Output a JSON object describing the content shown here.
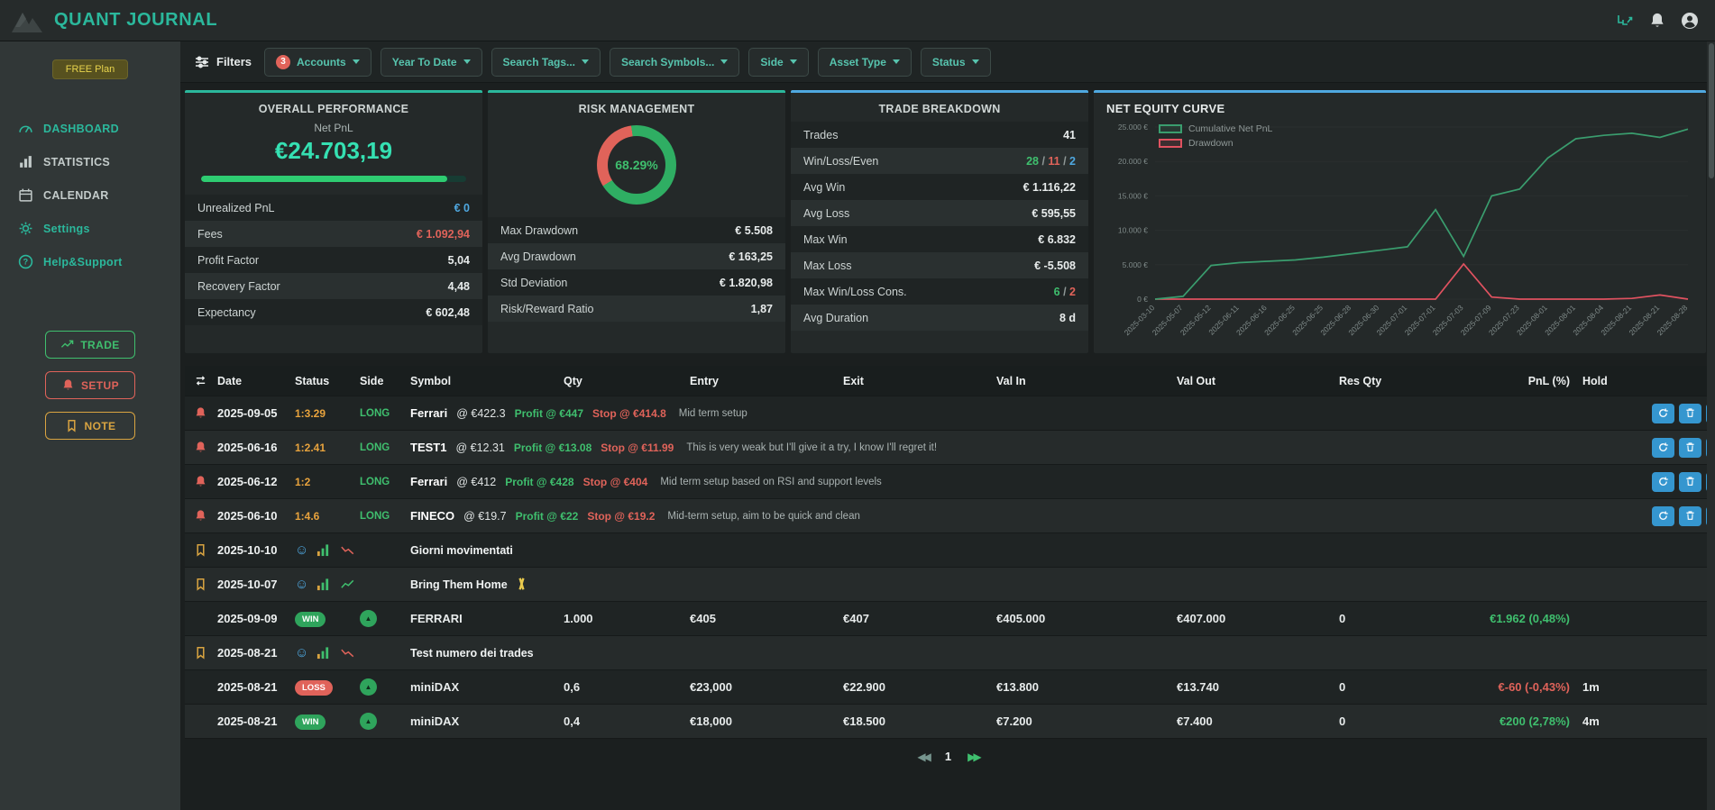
{
  "header": {
    "title": "QUANT JOURNAL"
  },
  "sidebar": {
    "plan_badge": "FREE Plan",
    "items": [
      {
        "label": "DASHBOARD",
        "icon": "gauge-icon",
        "accent": true
      },
      {
        "label": "STATISTICS",
        "icon": "stats-icon",
        "accent": false
      },
      {
        "label": "CALENDAR",
        "icon": "calendar-icon",
        "accent": false
      },
      {
        "label": "Settings",
        "icon": "gear-icon",
        "accent": true
      },
      {
        "label": "Help&Support",
        "icon": "help-icon",
        "accent": true
      }
    ],
    "actions": [
      {
        "label": "TRADE",
        "icon": "trade-icon",
        "color": "#3fbf6e"
      },
      {
        "label": "SETUP",
        "icon": "bell-icon",
        "color": "#e0635a"
      },
      {
        "label": "NOTE",
        "icon": "bookmark-icon",
        "color": "#d9a441"
      }
    ]
  },
  "filterbar": {
    "filters_label": "Filters",
    "accounts_badge": "3",
    "buttons": [
      "Accounts",
      "Year To Date",
      "Search Tags...",
      "Search Symbols...",
      "Side",
      "Asset Type",
      "Status"
    ]
  },
  "overall": {
    "title": "OVERALL PERFORMANCE",
    "net_pnl_label": "Net PnL",
    "net_pnl_value": "€24.703,19",
    "progress_pct": 93,
    "rows": [
      {
        "label": "Unrealized PnL",
        "value": "€ 0",
        "color": "blue"
      },
      {
        "label": "Fees",
        "value": "€ 1.092,94",
        "color": "red"
      },
      {
        "label": "Profit Factor",
        "value": "5,04"
      },
      {
        "label": "Recovery Factor",
        "value": "4,48"
      },
      {
        "label": "Expectancy",
        "value": "€ 602,48"
      }
    ]
  },
  "risk": {
    "title": "RISK MANAGEMENT",
    "donut_pct": "68.29%",
    "donut_value": 68.29,
    "rows": [
      {
        "label": "Max Drawdown",
        "value": "€ 5.508"
      },
      {
        "label": "Avg Drawdown",
        "value": "€ 163,25"
      },
      {
        "label": "Std Deviation",
        "value": "€ 1.820,98"
      },
      {
        "label": "Risk/Reward Ratio",
        "value": "1,87"
      }
    ]
  },
  "breakdown": {
    "title": "TRADE BREAKDOWN",
    "rows": [
      {
        "label": "Trades",
        "value": "41"
      },
      {
        "label": "Win/Loss/Even",
        "parts": [
          {
            "text": "28",
            "color": "green"
          },
          {
            "text": "11",
            "color": "red"
          },
          {
            "text": "2",
            "color": "blue"
          }
        ]
      },
      {
        "label": "Avg Win",
        "value": "€ 1.116,22"
      },
      {
        "label": "Avg Loss",
        "value": "€ 595,55"
      },
      {
        "label": "Max Win",
        "value": "€ 6.832"
      },
      {
        "label": "Max Loss",
        "value": "€ -5.508"
      },
      {
        "label": "Max Win/Loss Cons.",
        "parts": [
          {
            "text": "6",
            "color": "green"
          },
          {
            "text": "2",
            "color": "red"
          }
        ]
      },
      {
        "label": "Avg Duration",
        "value": "8 d"
      }
    ]
  },
  "equity": {
    "title": "NET EQUITY CURVE"
  },
  "chart_data": {
    "type": "line",
    "title": "NET EQUITY CURVE",
    "x": [
      "2025-03-10",
      "2025-05-07",
      "2025-05-12",
      "2025-06-11",
      "2025-06-16",
      "2025-06-25",
      "2025-06-25",
      "2025-06-28",
      "2025-06-30",
      "2025-07-01",
      "2025-07-01",
      "2025-07-03",
      "2025-07-09",
      "2025-07-23",
      "2025-08-01",
      "2025-08-01",
      "2025-08-04",
      "2025-08-21",
      "2025-08-21",
      "2025-08-28"
    ],
    "series": [
      {
        "name": "Cumulative Net PnL",
        "color": "#3a9d6e",
        "values": [
          0,
          400,
          4900,
          5300,
          5500,
          5700,
          6100,
          6600,
          7100,
          7600,
          13000,
          6200,
          15000,
          16000,
          20500,
          23300,
          23800,
          24100,
          23500,
          24703
        ]
      },
      {
        "name": "Drawdown",
        "color": "#e05260",
        "values": [
          0,
          0,
          0,
          0,
          0,
          0,
          0,
          0,
          0,
          0,
          0,
          5100,
          300,
          0,
          0,
          0,
          0,
          100,
          600,
          0
        ]
      }
    ],
    "ylim": [
      0,
      25000
    ],
    "yticks": [
      "0 €",
      "5.000 €",
      "10.000 €",
      "15.000 €",
      "20.000 €",
      "25.000 €"
    ],
    "legend_position": "top-left",
    "grid": false
  },
  "table": {
    "columns": [
      "Date",
      "Status",
      "Side",
      "Symbol",
      "Qty",
      "Entry",
      "Exit",
      "Val In",
      "Val Out",
      "Res Qty",
      "PnL (%)",
      "Hold"
    ],
    "rows": [
      {
        "type": "setup",
        "date": "2025-09-05",
        "ratio": "1:3.29",
        "side": "LONG",
        "symbol": "Ferrari",
        "price": "@ €422.3",
        "profit": "Profit @ €447",
        "stop": "Stop @ €414.8",
        "note": "Mid term setup"
      },
      {
        "type": "setup",
        "date": "2025-06-16",
        "ratio": "1:2.41",
        "side": "LONG",
        "symbol": "TEST1",
        "price": "@ €12.31",
        "profit": "Profit @ €13.08",
        "stop": "Stop @ €11.99",
        "note": "This is very weak but I'll give it a try, I know I'll regret it!"
      },
      {
        "type": "setup",
        "date": "2025-06-12",
        "ratio": "1:2",
        "side": "LONG",
        "symbol": "Ferrari",
        "price": "@ €412",
        "profit": "Profit @ €428",
        "stop": "Stop @ €404",
        "note": "Mid term setup based on RSI and support levels"
      },
      {
        "type": "setup",
        "date": "2025-06-10",
        "ratio": "1:4.6",
        "side": "LONG",
        "symbol": "FINECO",
        "price": "@ €19.7",
        "profit": "Profit @ €22",
        "stop": "Stop @ €19.2",
        "note": "Mid-term setup, aim to be quick and clean"
      },
      {
        "type": "note",
        "date": "2025-10-10",
        "title": "Giorni movimentati",
        "trend": "down",
        "ribbon": false
      },
      {
        "type": "note",
        "date": "2025-10-07",
        "title": "Bring Them Home",
        "trend": "up",
        "ribbon": true
      },
      {
        "type": "exec",
        "date": "2025-09-09",
        "result": "WIN",
        "symbol": "FERRARI",
        "qty": "1.000",
        "entry": "€405",
        "exit": "€407",
        "val_in": "€405.000",
        "val_out": "€407.000",
        "res_qty": "0",
        "pnl": "€1.962 (0,48%)",
        "pnl_color": "green",
        "hold": ""
      },
      {
        "type": "note",
        "date": "2025-08-21",
        "title": "Test numero dei trades",
        "trend": "down",
        "ribbon": false
      },
      {
        "type": "exec",
        "date": "2025-08-21",
        "result": "LOSS",
        "symbol": "miniDAX",
        "qty": "0,6",
        "entry": "€23,000",
        "exit": "€22.900",
        "val_in": "€13.800",
        "val_out": "€13.740",
        "res_qty": "0",
        "pnl": "€-60 (-0,43%)",
        "pnl_color": "red",
        "hold": "1m"
      },
      {
        "type": "exec",
        "date": "2025-08-21",
        "result": "WIN",
        "symbol": "miniDAX",
        "qty": "0,4",
        "entry": "€18,000",
        "exit": "€18.500",
        "val_in": "€7.200",
        "val_out": "€7.400",
        "res_qty": "0",
        "pnl": "€200 (2,78%)",
        "pnl_color": "green",
        "hold": "4m"
      }
    ]
  },
  "pagination": {
    "page": "1"
  },
  "colors": {
    "accent": "#2bb89c",
    "green": "#3fbf6e",
    "red": "#e0635a",
    "blue": "#4fa8e0",
    "orange": "#e8a33d",
    "donut_green": "#2fae63"
  }
}
